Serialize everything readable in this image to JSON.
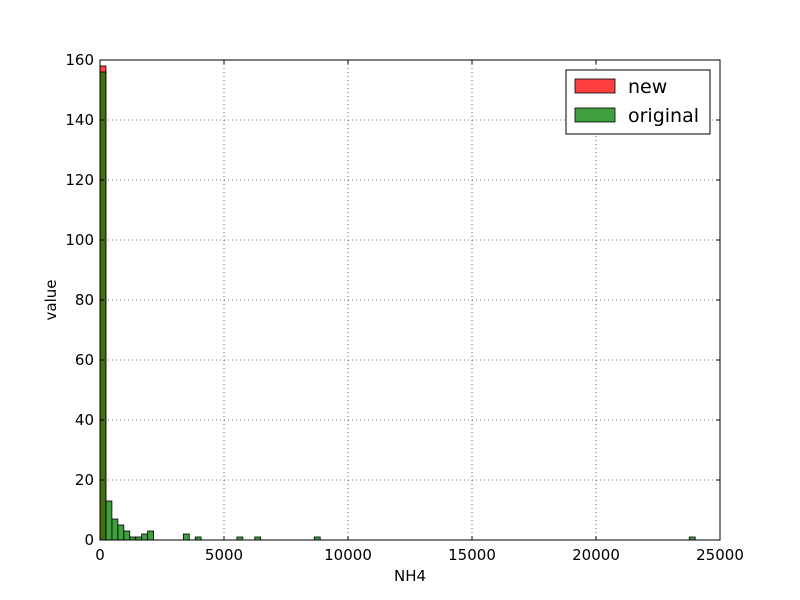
{
  "chart_data": {
    "type": "bar",
    "title": "",
    "xlabel": "NH4",
    "ylabel": "value",
    "xlim": [
      0,
      25000
    ],
    "ylim": [
      0,
      160
    ],
    "xticks": [
      0,
      5000,
      10000,
      15000,
      20000,
      25000
    ],
    "yticks": [
      0,
      20,
      40,
      60,
      80,
      100,
      120,
      140,
      160
    ],
    "grid": true,
    "legend_position": "top-right",
    "bin_width": 240,
    "series": [
      {
        "name": "new",
        "color": "#ff0000",
        "bins": [
          [
            0,
            158
          ]
        ]
      },
      {
        "name": "original",
        "color": "#008000",
        "bins": [
          [
            0,
            156
          ],
          [
            240,
            13
          ],
          [
            480,
            7
          ],
          [
            720,
            5
          ],
          [
            960,
            3
          ],
          [
            1200,
            1
          ],
          [
            1440,
            1
          ],
          [
            1680,
            2
          ],
          [
            1920,
            3
          ],
          [
            3360,
            2
          ],
          [
            3840,
            1
          ],
          [
            5520,
            1
          ],
          [
            6240,
            1
          ],
          [
            8640,
            1
          ],
          [
            23760,
            1
          ]
        ]
      }
    ]
  }
}
